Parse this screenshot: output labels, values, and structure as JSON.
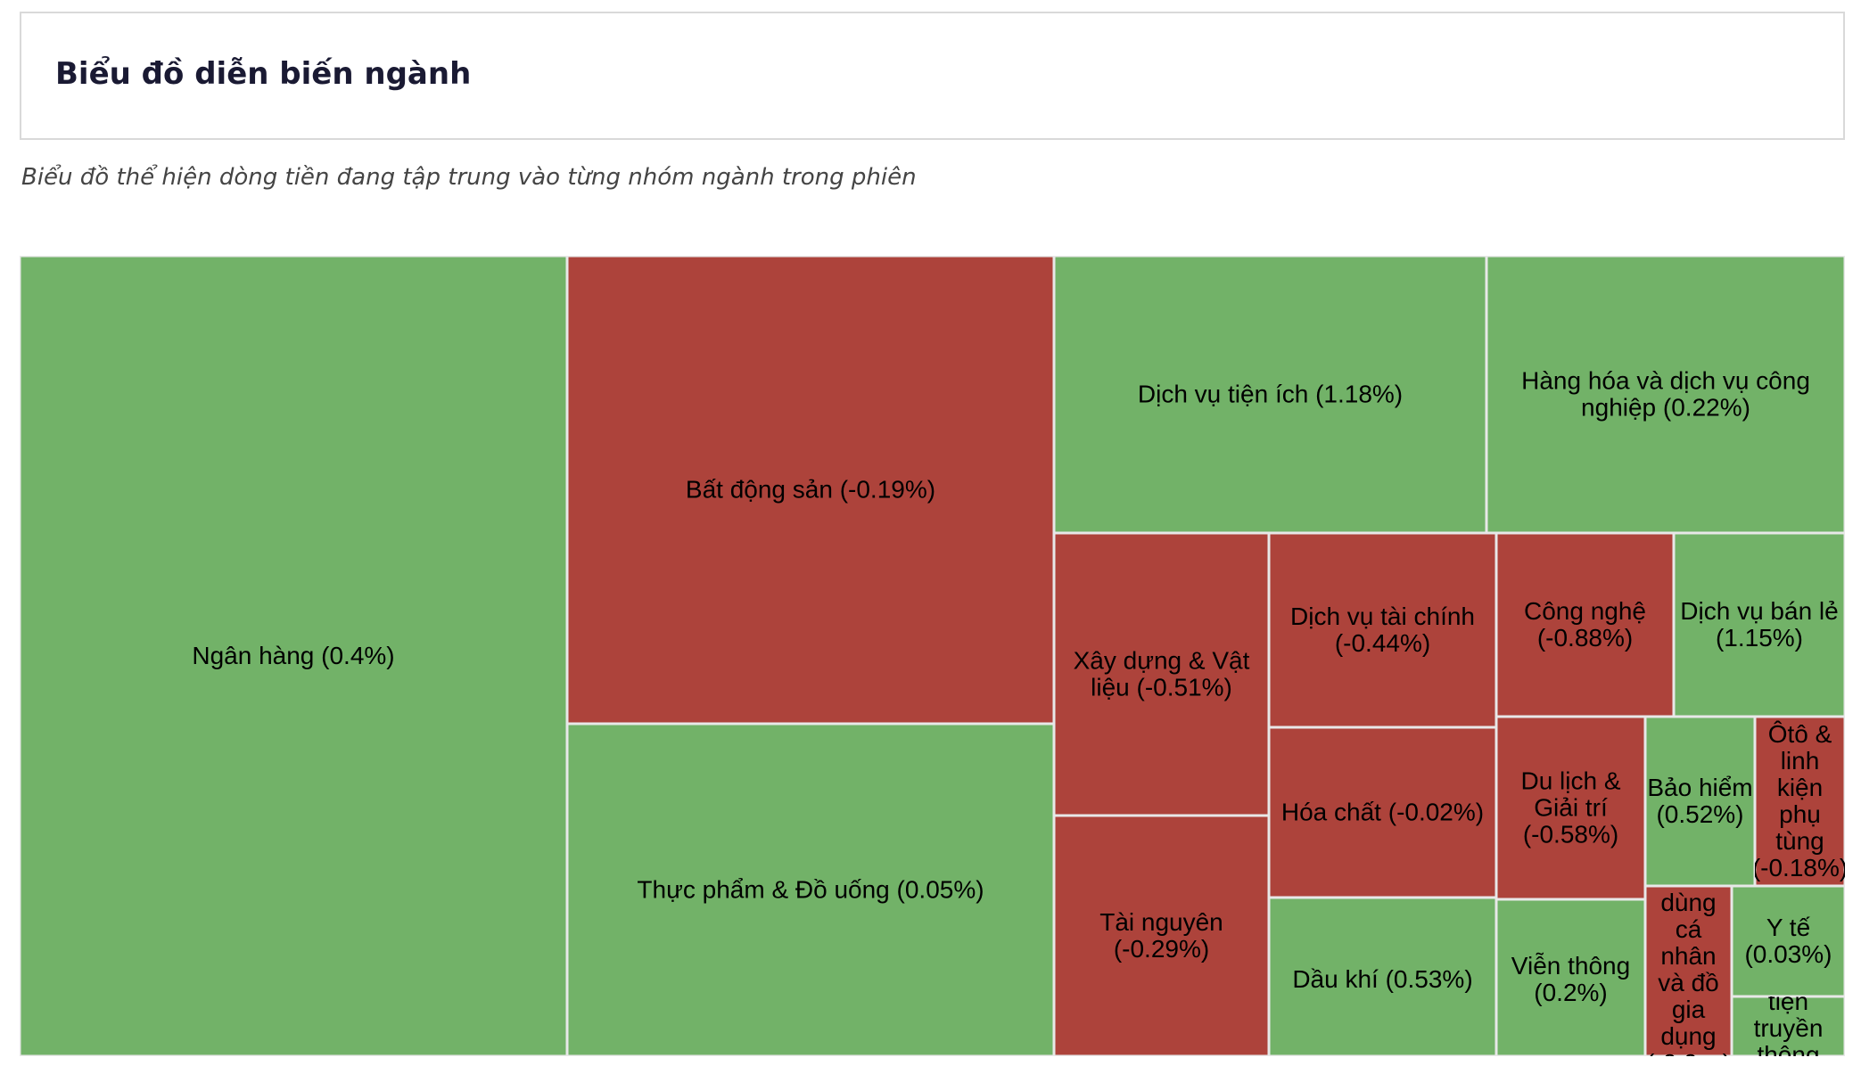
{
  "header": {
    "title": "Biểu đồ diễn biến ngành"
  },
  "subtitle": "Biểu đồ thể hiện dòng tiền đang tập trung vào từng nhóm ngành trong phiên",
  "colors": {
    "positive": "#72b268",
    "negative": "#ad433b",
    "border": "#e8e8e8"
  },
  "chart_data": {
    "type": "treemap",
    "items": [
      {
        "name": "Ngân hàng",
        "change": 0.4,
        "label": "Ngân hàng (0.4%)"
      },
      {
        "name": "Bất động sản",
        "change": -0.19,
        "label": "Bất động sản (-0.19%)"
      },
      {
        "name": "Thực phẩm & Đồ uống",
        "change": 0.05,
        "label": "Thực phẩm & Đồ uống (0.05%)"
      },
      {
        "name": "Dịch vụ tiện ích",
        "change": 1.18,
        "label": "Dịch vụ tiện ích (1.18%)"
      },
      {
        "name": "Hàng hóa và dịch vụ công nghiệp",
        "change": 0.22,
        "label": "Hàng hóa và dịch vụ công nghiệp (0.22%)"
      },
      {
        "name": "Xây dựng & Vật liệu",
        "change": -0.51,
        "label": "Xây dựng & Vật liệu (-0.51%)"
      },
      {
        "name": "Tài nguyên",
        "change": -0.29,
        "label": "Tài nguyên (-0.29%)"
      },
      {
        "name": "Dịch vụ tài chính",
        "change": -0.44,
        "label": "Dịch vụ tài chính (-0.44%)"
      },
      {
        "name": "Hóa chất",
        "change": -0.02,
        "label": "Hóa chất (-0.02%)"
      },
      {
        "name": "Dầu khí",
        "change": 0.53,
        "label": "Dầu khí (0.53%)"
      },
      {
        "name": "Công nghệ",
        "change": -0.88,
        "label": "Công nghệ (-0.88%)"
      },
      {
        "name": "Dịch vụ bán lẻ",
        "change": 1.15,
        "label": "Dịch vụ bán lẻ (1.15%)"
      },
      {
        "name": "Du lịch & Giải trí",
        "change": -0.58,
        "label": "Du lịch & Giải trí (-0.58%)"
      },
      {
        "name": "Viễn thông",
        "change": 0.2,
        "label": "Viễn thông (0.2%)"
      },
      {
        "name": "Bảo hiểm",
        "change": 0.52,
        "label": "Bảo hiểm (0.52%)"
      },
      {
        "name": "Ôtô & linh kiện phụ tùng",
        "change": -0.18,
        "label": "Ôtô & linh kiện phụ tùng (-0.18%)"
      },
      {
        "name": "Hàng tiêu dùng cá nhân và đồ gia dụng",
        "change": null,
        "label": "dùng cá nhân và đồ gia dụng"
      },
      {
        "name": "Y tế",
        "change": 0.03,
        "label": "Y tế (0.03%)"
      },
      {
        "name": "Truyền thông",
        "change": null,
        "label": "tiện truyền thông"
      }
    ]
  }
}
